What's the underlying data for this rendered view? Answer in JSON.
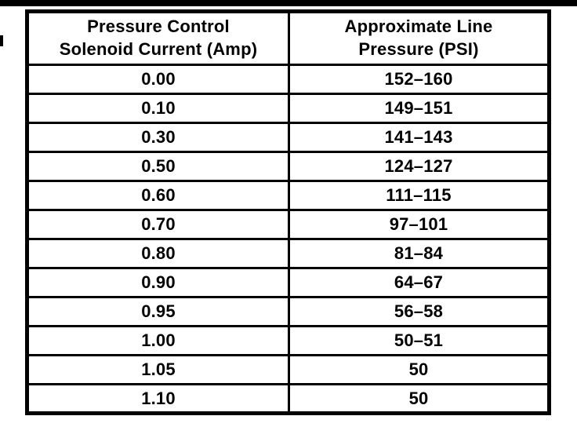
{
  "colors": {
    "ink": "#000000",
    "paper": "#ffffff"
  },
  "table": {
    "headers": [
      {
        "line1": "Pressure Control",
        "line2": "Solenoid Current (Amp)"
      },
      {
        "line1": "Approximate Line",
        "line2": "Pressure (PSI)"
      }
    ],
    "rows": [
      {
        "current": "0.00",
        "pressure": "152–160"
      },
      {
        "current": "0.10",
        "pressure": "149–151"
      },
      {
        "current": "0.30",
        "pressure": "141–143"
      },
      {
        "current": "0.50",
        "pressure": "124–127"
      },
      {
        "current": "0.60",
        "pressure": "111–115"
      },
      {
        "current": "0.70",
        "pressure": "97–101"
      },
      {
        "current": "0.80",
        "pressure": "81–84"
      },
      {
        "current": "0.90",
        "pressure": "64–67"
      },
      {
        "current": "0.95",
        "pressure": "56–58"
      },
      {
        "current": "1.00",
        "pressure": "50–51"
      },
      {
        "current": "1.05",
        "pressure": "50"
      },
      {
        "current": "1.10",
        "pressure": "50"
      }
    ]
  }
}
